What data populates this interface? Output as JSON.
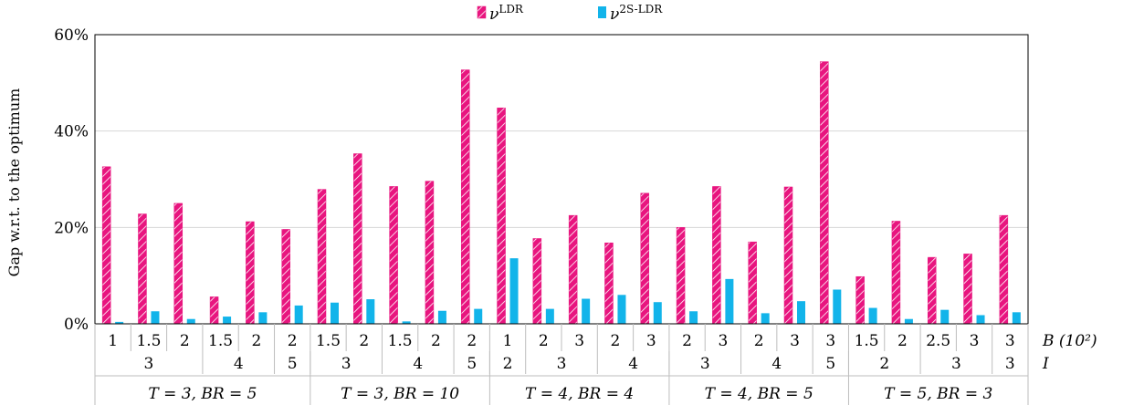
{
  "chart_data": {
    "type": "bar",
    "ylabel": "Gap w.r.t. to the optimum",
    "ylim": [
      0,
      60
    ],
    "yticks": [
      "0%",
      "20%",
      "40%",
      "60%"
    ],
    "ytick_values": [
      0,
      20,
      40,
      60
    ],
    "grid": true,
    "legend_position": "top-center",
    "x_axis_name_B": "B (10²)",
    "x_axis_name_I": "I",
    "B": [
      "1",
      "1.5",
      "2",
      "1.5",
      "2",
      "2",
      "1.5",
      "2",
      "1.5",
      "2",
      "2",
      "1",
      "2",
      "3",
      "2",
      "3",
      "2",
      "3",
      "2",
      "3",
      "3",
      "1.5",
      "2",
      "2.5",
      "3",
      "3"
    ],
    "I_groups": [
      {
        "label": "3",
        "span": 3
      },
      {
        "label": "4",
        "span": 2
      },
      {
        "label": "5",
        "span": 1
      },
      {
        "label": "3",
        "span": 2
      },
      {
        "label": "4",
        "span": 2
      },
      {
        "label": "5",
        "span": 1
      },
      {
        "label": "2",
        "span": 1
      },
      {
        "label": "3",
        "span": 2
      },
      {
        "label": "4",
        "span": 2
      },
      {
        "label": "3",
        "span": 2
      },
      {
        "label": "4",
        "span": 2
      },
      {
        "label": "5",
        "span": 1
      },
      {
        "label": "2",
        "span": 2
      },
      {
        "label": "3",
        "span": 2
      },
      {
        "label": "3",
        "span": 1
      }
    ],
    "T_groups": [
      {
        "label": "T = 3, BR = 5",
        "span": 6
      },
      {
        "label": "T = 3, BR = 10",
        "span": 5
      },
      {
        "label": "T = 4, BR = 4",
        "span": 5
      },
      {
        "label": "T = 4, BR = 5",
        "span": 5
      },
      {
        "label": "T = 5, BR = 3",
        "span": 5
      }
    ],
    "series": [
      {
        "name": "νLDR",
        "color": "#e8157f",
        "values": [
          32.6,
          22.8,
          25,
          5.6,
          21.2,
          19.6,
          27.9,
          35.3,
          28.5,
          29.6,
          52.7,
          44.8,
          17.7,
          22.5,
          16.8,
          27.1,
          20,
          28.5,
          17,
          28.4,
          54.4,
          9.8,
          21.3,
          13.8,
          14.5,
          22.5
        ]
      },
      {
        "name": "ν2S-LDR",
        "color": "#12b4ea",
        "values": [
          0.4,
          2.6,
          1,
          1.5,
          2.4,
          3.8,
          4.4,
          5.1,
          0.5,
          2.7,
          3.1,
          13.6,
          3.1,
          5.2,
          6,
          4.5,
          2.6,
          9.3,
          2.2,
          4.7,
          7.1,
          3.3,
          1,
          2.9,
          1.8,
          2.4
        ]
      }
    ]
  },
  "legend": [
    {
      "symbol": "ν",
      "superscript": "LDR"
    },
    {
      "symbol": "ν",
      "superscript": "2S-LDR"
    }
  ]
}
